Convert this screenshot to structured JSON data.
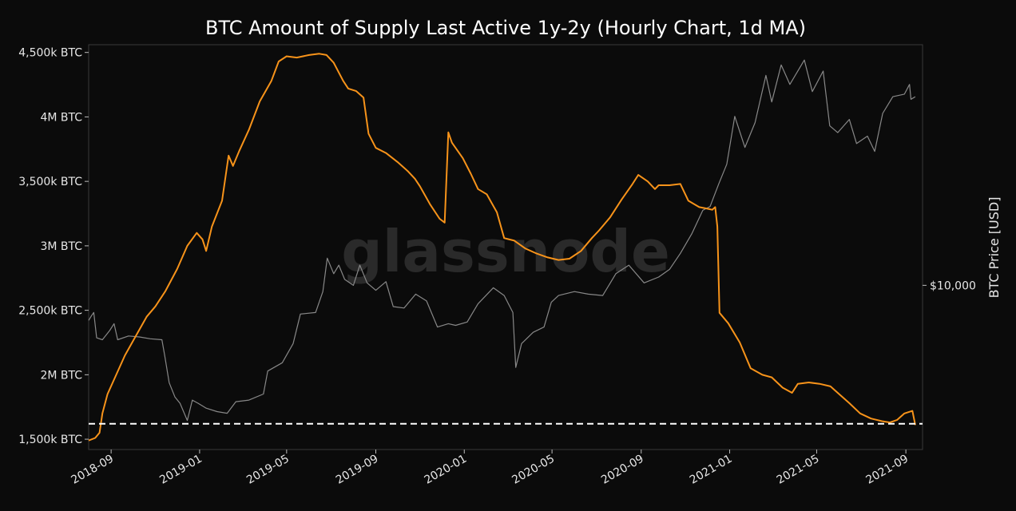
{
  "chart_data": {
    "type": "line",
    "title": "BTC Amount of Supply Last Active 1y-2y (Hourly Chart, 1d MA)",
    "watermark": "glassnode",
    "y_left": {
      "ticks": [
        1500000,
        2000000,
        2500000,
        3000000,
        3500000,
        4000000,
        4500000
      ],
      "tick_labels": [
        "1,500k BTC",
        "2M BTC",
        "2,500k BTC",
        "3M BTC",
        "3,500k BTC",
        "4M BTC",
        "4,500k BTC"
      ],
      "range": [
        1420000,
        4560000
      ]
    },
    "y_right": {
      "label": "BTC Price [USD]",
      "scale": "log",
      "ticks": [
        10000
      ],
      "tick_labels": [
        "$10,000"
      ],
      "range": [
        2600,
        72000
      ]
    },
    "x_axis": {
      "ticks": [
        "2018-09-01",
        "2019-01-01",
        "2019-05-01",
        "2019-09-01",
        "2020-01-01",
        "2020-05-01",
        "2020-09-01",
        "2021-01-01",
        "2021-05-01",
        "2021-09-01"
      ],
      "tick_labels": [
        "2018-09",
        "2019-01",
        "2019-05",
        "2019-09",
        "2020-01",
        "2020-05",
        "2020-09",
        "2021-01",
        "2021-05",
        "2021-09"
      ],
      "range": [
        "2018-08-01",
        "2021-09-24"
      ]
    },
    "reference_line": {
      "value": 1620000,
      "style": "dashed",
      "color": "#ffffff"
    },
    "series": [
      {
        "color": "#f7931a",
        "axis": "left",
        "points": [
          [
            "2018-08-01",
            1490000
          ],
          [
            "2018-08-10",
            1510000
          ],
          [
            "2018-08-16",
            1550000
          ],
          [
            "2018-08-20",
            1700000
          ],
          [
            "2018-08-27",
            1850000
          ],
          [
            "2018-09-08",
            2000000
          ],
          [
            "2018-09-20",
            2150000
          ],
          [
            "2018-10-05",
            2300000
          ],
          [
            "2018-10-20",
            2450000
          ],
          [
            "2018-11-01",
            2530000
          ],
          [
            "2018-11-15",
            2650000
          ],
          [
            "2018-12-01",
            2820000
          ],
          [
            "2018-12-15",
            3000000
          ],
          [
            "2018-12-28",
            3100000
          ],
          [
            "2019-01-05",
            3050000
          ],
          [
            "2019-01-10",
            2960000
          ],
          [
            "2019-01-18",
            3150000
          ],
          [
            "2019-02-01",
            3350000
          ],
          [
            "2019-02-10",
            3700000
          ],
          [
            "2019-02-16",
            3620000
          ],
          [
            "2019-02-25",
            3740000
          ],
          [
            "2019-03-10",
            3900000
          ],
          [
            "2019-03-25",
            4120000
          ],
          [
            "2019-04-10",
            4280000
          ],
          [
            "2019-04-20",
            4430000
          ],
          [
            "2019-05-01",
            4470000
          ],
          [
            "2019-05-15",
            4460000
          ],
          [
            "2019-06-01",
            4480000
          ],
          [
            "2019-06-15",
            4490000
          ],
          [
            "2019-06-25",
            4480000
          ],
          [
            "2019-07-05",
            4420000
          ],
          [
            "2019-07-18",
            4280000
          ],
          [
            "2019-07-25",
            4220000
          ],
          [
            "2019-08-05",
            4200000
          ],
          [
            "2019-08-15",
            4150000
          ],
          [
            "2019-08-22",
            3870000
          ],
          [
            "2019-09-01",
            3760000
          ],
          [
            "2019-09-15",
            3720000
          ],
          [
            "2019-10-01",
            3650000
          ],
          [
            "2019-10-15",
            3580000
          ],
          [
            "2019-10-25",
            3520000
          ],
          [
            "2019-11-01",
            3460000
          ],
          [
            "2019-11-15",
            3320000
          ],
          [
            "2019-11-28",
            3210000
          ],
          [
            "2019-12-05",
            3180000
          ],
          [
            "2019-12-10",
            3880000
          ],
          [
            "2019-12-15",
            3800000
          ],
          [
            "2019-12-30",
            3680000
          ],
          [
            "2020-01-10",
            3560000
          ],
          [
            "2020-01-20",
            3440000
          ],
          [
            "2020-02-01",
            3400000
          ],
          [
            "2020-02-15",
            3260000
          ],
          [
            "2020-02-25",
            3060000
          ],
          [
            "2020-03-10",
            3040000
          ],
          [
            "2020-03-25",
            2980000
          ],
          [
            "2020-04-10",
            2940000
          ],
          [
            "2020-04-25",
            2910000
          ],
          [
            "2020-05-10",
            2890000
          ],
          [
            "2020-05-25",
            2900000
          ],
          [
            "2020-06-10",
            2960000
          ],
          [
            "2020-06-25",
            3060000
          ],
          [
            "2020-07-05",
            3120000
          ],
          [
            "2020-07-20",
            3220000
          ],
          [
            "2020-08-05",
            3360000
          ],
          [
            "2020-08-20",
            3480000
          ],
          [
            "2020-08-28",
            3550000
          ],
          [
            "2020-09-10",
            3500000
          ],
          [
            "2020-09-20",
            3440000
          ],
          [
            "2020-09-25",
            3470000
          ],
          [
            "2020-10-10",
            3470000
          ],
          [
            "2020-10-25",
            3480000
          ],
          [
            "2020-11-05",
            3350000
          ],
          [
            "2020-11-20",
            3300000
          ],
          [
            "2020-11-30",
            3290000
          ],
          [
            "2020-12-08",
            3280000
          ],
          [
            "2020-12-12",
            3300000
          ],
          [
            "2020-12-15",
            3150000
          ],
          [
            "2020-12-18",
            2480000
          ],
          [
            "2020-12-30",
            2400000
          ],
          [
            "2021-01-15",
            2250000
          ],
          [
            "2021-01-30",
            2050000
          ],
          [
            "2021-02-15",
            2000000
          ],
          [
            "2021-02-28",
            1980000
          ],
          [
            "2021-03-15",
            1900000
          ],
          [
            "2021-03-28",
            1860000
          ],
          [
            "2021-04-05",
            1930000
          ],
          [
            "2021-04-20",
            1940000
          ],
          [
            "2021-05-05",
            1930000
          ],
          [
            "2021-05-20",
            1910000
          ],
          [
            "2021-06-01",
            1850000
          ],
          [
            "2021-06-15",
            1780000
          ],
          [
            "2021-06-30",
            1700000
          ],
          [
            "2021-07-15",
            1660000
          ],
          [
            "2021-07-30",
            1640000
          ],
          [
            "2021-08-10",
            1630000
          ],
          [
            "2021-08-20",
            1650000
          ],
          [
            "2021-08-30",
            1700000
          ],
          [
            "2021-09-10",
            1720000
          ],
          [
            "2021-09-14",
            1610000
          ]
        ]
      },
      {
        "color": "#888888",
        "axis": "right",
        "points": [
          [
            "2018-08-01",
            7500
          ],
          [
            "2018-08-05",
            7800
          ],
          [
            "2018-08-08",
            8000
          ],
          [
            "2018-08-12",
            6500
          ],
          [
            "2018-08-20",
            6400
          ],
          [
            "2018-08-30",
            6900
          ],
          [
            "2018-09-05",
            7300
          ],
          [
            "2018-09-10",
            6400
          ],
          [
            "2018-09-25",
            6600
          ],
          [
            "2018-10-10",
            6550
          ],
          [
            "2018-10-25",
            6450
          ],
          [
            "2018-11-10",
            6400
          ],
          [
            "2018-11-14",
            5600
          ],
          [
            "2018-11-20",
            4500
          ],
          [
            "2018-11-28",
            4000
          ],
          [
            "2018-12-05",
            3800
          ],
          [
            "2018-12-15",
            3300
          ],
          [
            "2018-12-22",
            3900
          ],
          [
            "2018-12-30",
            3800
          ],
          [
            "2019-01-10",
            3650
          ],
          [
            "2019-01-25",
            3550
          ],
          [
            "2019-02-08",
            3500
          ],
          [
            "2019-02-20",
            3850
          ],
          [
            "2019-03-10",
            3900
          ],
          [
            "2019-03-30",
            4100
          ],
          [
            "2019-04-05",
            4950
          ],
          [
            "2019-04-25",
            5300
          ],
          [
            "2019-05-10",
            6200
          ],
          [
            "2019-05-20",
            7900
          ],
          [
            "2019-06-10",
            8000
          ],
          [
            "2019-06-20",
            9500
          ],
          [
            "2019-06-26",
            12500
          ],
          [
            "2019-07-05",
            11000
          ],
          [
            "2019-07-12",
            11800
          ],
          [
            "2019-07-20",
            10500
          ],
          [
            "2019-08-01",
            10000
          ],
          [
            "2019-08-10",
            11800
          ],
          [
            "2019-08-20",
            10200
          ],
          [
            "2019-09-01",
            9600
          ],
          [
            "2019-09-15",
            10300
          ],
          [
            "2019-09-25",
            8400
          ],
          [
            "2019-10-10",
            8300
          ],
          [
            "2019-10-26",
            9300
          ],
          [
            "2019-11-10",
            8800
          ],
          [
            "2019-11-25",
            7100
          ],
          [
            "2019-12-10",
            7300
          ],
          [
            "2019-12-20",
            7200
          ],
          [
            "2020-01-05",
            7400
          ],
          [
            "2020-01-20",
            8600
          ],
          [
            "2020-02-10",
            9800
          ],
          [
            "2020-02-25",
            9200
          ],
          [
            "2020-03-08",
            8000
          ],
          [
            "2020-03-12",
            5100
          ],
          [
            "2020-03-20",
            6200
          ],
          [
            "2020-04-05",
            6800
          ],
          [
            "2020-04-20",
            7100
          ],
          [
            "2020-04-30",
            8700
          ],
          [
            "2020-05-10",
            9200
          ],
          [
            "2020-06-01",
            9500
          ],
          [
            "2020-06-20",
            9300
          ],
          [
            "2020-07-10",
            9200
          ],
          [
            "2020-07-28",
            11000
          ],
          [
            "2020-08-15",
            11800
          ],
          [
            "2020-09-05",
            10200
          ],
          [
            "2020-09-25",
            10700
          ],
          [
            "2020-10-10",
            11400
          ],
          [
            "2020-10-25",
            13000
          ],
          [
            "2020-11-10",
            15300
          ],
          [
            "2020-11-25",
            18500
          ],
          [
            "2020-12-05",
            19100
          ],
          [
            "2020-12-17",
            23000
          ],
          [
            "2020-12-28",
            27000
          ],
          [
            "2021-01-08",
            40000
          ],
          [
            "2021-01-22",
            31000
          ],
          [
            "2021-02-05",
            38000
          ],
          [
            "2021-02-20",
            56000
          ],
          [
            "2021-02-28",
            45000
          ],
          [
            "2021-03-13",
            61000
          ],
          [
            "2021-03-25",
            52000
          ],
          [
            "2021-04-14",
            63500
          ],
          [
            "2021-04-25",
            49000
          ],
          [
            "2021-05-10",
            58000
          ],
          [
            "2021-05-19",
            37000
          ],
          [
            "2021-05-30",
            35000
          ],
          [
            "2021-06-15",
            39000
          ],
          [
            "2021-06-25",
            32000
          ],
          [
            "2021-07-10",
            34000
          ],
          [
            "2021-07-20",
            30000
          ],
          [
            "2021-07-31",
            41000
          ],
          [
            "2021-08-14",
            47000
          ],
          [
            "2021-08-30",
            48000
          ],
          [
            "2021-09-06",
            52000
          ],
          [
            "2021-09-08",
            46000
          ],
          [
            "2021-09-14",
            47000
          ]
        ]
      }
    ]
  }
}
